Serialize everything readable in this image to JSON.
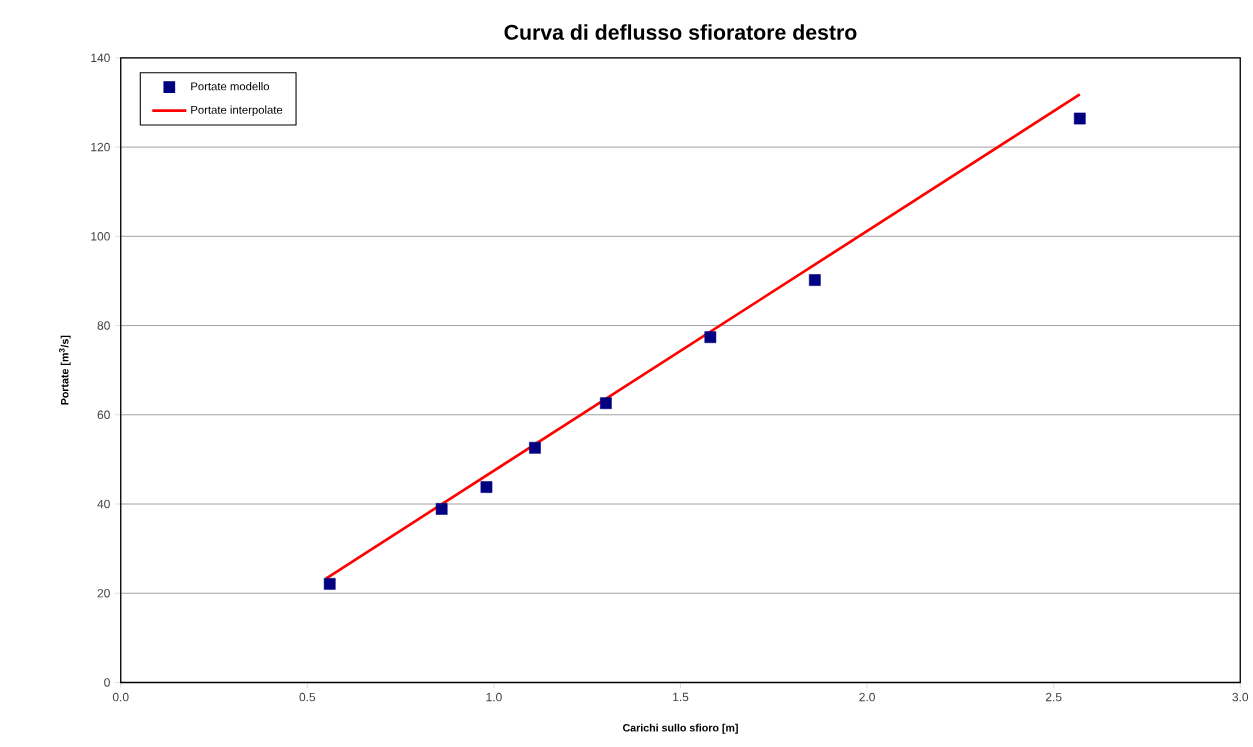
{
  "chart_data": {
    "type": "scatter",
    "title": "Curva di deflusso sfioratore destro",
    "xlabel": "Carichi sullo sfioro [m]",
    "ylabel": "Portate [m$^{3}$/s]",
    "xlim": [
      0,
      3
    ],
    "ylim": [
      0,
      140
    ],
    "xticks": [
      {
        "value": 0,
        "label": "0.0"
      },
      {
        "value": 0.5,
        "label": "0.5"
      },
      {
        "value": 1,
        "label": "1.0"
      },
      {
        "value": 1.5,
        "label": "1.5"
      },
      {
        "value": 2,
        "label": "2.0"
      },
      {
        "value": 2.5,
        "label": "2.5"
      },
      {
        "value": 3,
        "label": "3.0"
      }
    ],
    "yticks": [
      0,
      20,
      40,
      60,
      80,
      100,
      120,
      140
    ],
    "grid": "y",
    "legend": "top left",
    "series": [
      {
        "name": "Portate modello",
        "marker": "square",
        "color": "#000080",
        "x": [
          0.56,
          0.86,
          0.98,
          1.11,
          1.3,
          1.58,
          1.86,
          2.57
        ],
        "values": [
          22.1,
          38.9,
          43.8,
          52.6,
          62.6,
          77.4,
          90.2,
          126.4
        ]
      },
      {
        "name": "Portate interpolate",
        "type": "line",
        "marker": "none",
        "line_style": "solid",
        "color": "#ff0000",
        "x": [
          0.55,
          2.57
        ],
        "values": [
          23.3,
          131.8
        ]
      }
    ]
  }
}
